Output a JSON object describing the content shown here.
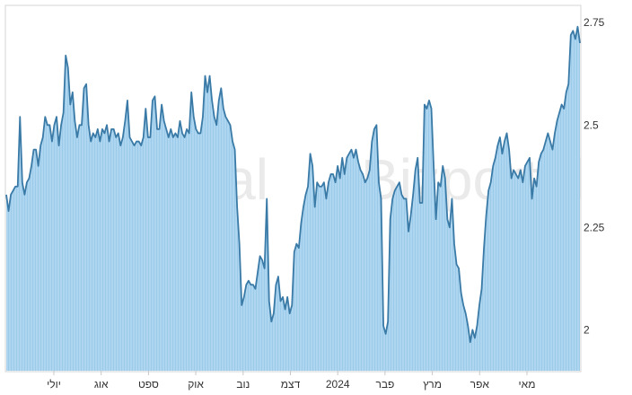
{
  "chart_data": {
    "type": "area",
    "title": "",
    "xlabel": "",
    "ylabel": "",
    "ylim": [
      1.9,
      2.79
    ],
    "y_ticks": [
      2,
      2.25,
      2.5,
      2.75
    ],
    "y_tick_labels": [
      "2",
      "2.25",
      "2.5",
      "2.75"
    ],
    "y_axis_position": "right",
    "grid": false,
    "legend": "none",
    "x_tick_labels": [
      "יולי",
      "אוג",
      "ספט",
      "אוק",
      "נוב",
      "דצמ",
      "2024",
      "פבר",
      "מרץ",
      "אפר",
      "מאי"
    ],
    "watermark": "Bizportal",
    "colors": {
      "line": "#3a7aa7",
      "fill": "#a9d3ee",
      "border": "#d6d6d6",
      "text": "#333333",
      "watermark": "#d9d9d9"
    },
    "series": [
      {
        "values": [
          2.33,
          2.29,
          2.33,
          2.34,
          2.35,
          2.35,
          2.52,
          2.36,
          2.33,
          2.36,
          2.37,
          2.4,
          2.44,
          2.44,
          2.4,
          2.45,
          2.47,
          2.52,
          2.5,
          2.5,
          2.46,
          2.5,
          2.52,
          2.45,
          2.5,
          2.53,
          2.67,
          2.64,
          2.55,
          2.58,
          2.51,
          2.47,
          2.5,
          2.5,
          2.59,
          2.6,
          2.5,
          2.46,
          2.48,
          2.47,
          2.49,
          2.46,
          2.49,
          2.48,
          2.5,
          2.46,
          2.49,
          2.49,
          2.47,
          2.48,
          2.45,
          2.47,
          2.51,
          2.56,
          2.47,
          2.46,
          2.45,
          2.46,
          2.46,
          2.45,
          2.47,
          2.54,
          2.47,
          2.47,
          2.56,
          2.57,
          2.49,
          2.49,
          2.55,
          2.51,
          2.49,
          2.47,
          2.49,
          2.47,
          2.48,
          2.47,
          2.51,
          2.48,
          2.47,
          2.49,
          2.48,
          2.58,
          2.52,
          2.49,
          2.48,
          2.48,
          2.52,
          2.62,
          2.58,
          2.62,
          2.56,
          2.52,
          2.5,
          2.56,
          2.59,
          2.54,
          2.52,
          2.51,
          2.5,
          2.46,
          2.44,
          2.3,
          2.21,
          2.06,
          2.08,
          2.11,
          2.12,
          2.11,
          2.11,
          2.1,
          2.14,
          2.18,
          2.17,
          2.15,
          2.32,
          2.07,
          2.02,
          2.04,
          2.11,
          2.13,
          2.07,
          2.08,
          2.05,
          2.08,
          2.04,
          2.06,
          2.19,
          2.21,
          2.2,
          2.26,
          2.3,
          2.33,
          2.35,
          2.43,
          2.4,
          2.3,
          2.36,
          2.35,
          2.35,
          2.36,
          2.32,
          2.36,
          2.38,
          2.38,
          2.36,
          2.4,
          2.37,
          2.42,
          2.38,
          2.42,
          2.43,
          2.44,
          2.42,
          2.44,
          2.41,
          2.39,
          2.38,
          2.36,
          2.37,
          2.39,
          2.46,
          2.49,
          2.5,
          2.36,
          2.32,
          2.01,
          1.99,
          2.02,
          2.27,
          2.32,
          2.34,
          2.35,
          2.36,
          2.33,
          2.32,
          2.32,
          2.24,
          2.28,
          2.33,
          2.39,
          2.42,
          2.31,
          2.31,
          2.55,
          2.54,
          2.56,
          2.54,
          2.4,
          2.27,
          2.36,
          2.35,
          2.4,
          2.37,
          2.27,
          2.25,
          2.32,
          2.21,
          2.16,
          2.15,
          2.09,
          2.06,
          2.04,
          2.01,
          1.97,
          2.0,
          1.98,
          2.01,
          2.06,
          2.1,
          2.2,
          2.28,
          2.34,
          2.36,
          2.4,
          2.42,
          2.45,
          2.47,
          2.43,
          2.46,
          2.48,
          2.44,
          2.37,
          2.39,
          2.38,
          2.37,
          2.39,
          2.36,
          2.4,
          2.41,
          2.42,
          2.32,
          2.37,
          2.35,
          2.41,
          2.43,
          2.44,
          2.46,
          2.48,
          2.46,
          2.44,
          2.48,
          2.51,
          2.53,
          2.55,
          2.54,
          2.58,
          2.6,
          2.72,
          2.73,
          2.71,
          2.74,
          2.7
        ]
      }
    ]
  }
}
